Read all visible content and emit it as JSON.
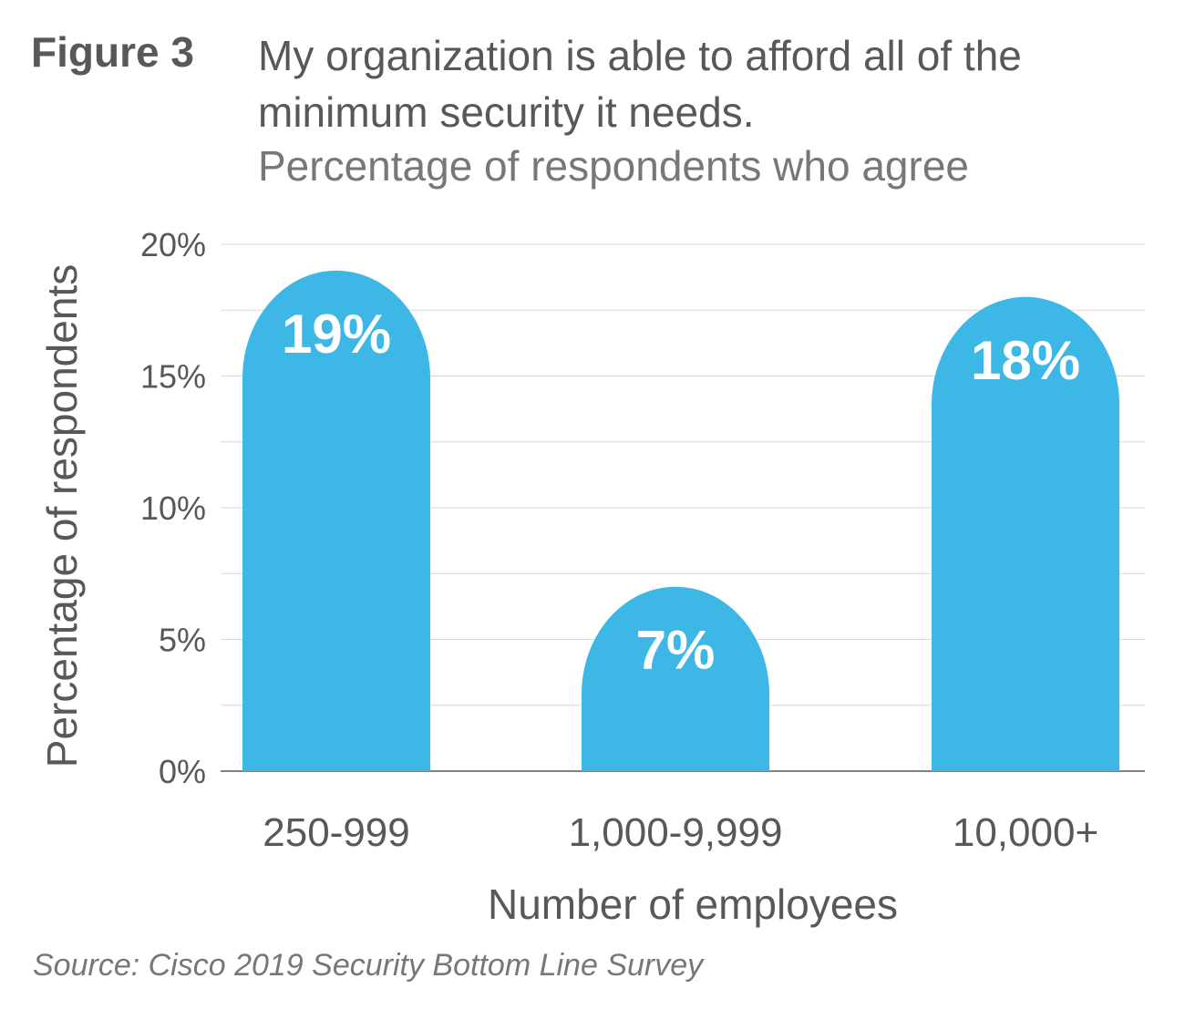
{
  "header": {
    "figure_label": "Figure 3",
    "title": "My organization is able to afford all of the minimum security it needs.",
    "subtitle": "Percentage of respondents who agree"
  },
  "footer": {
    "source": "Source: Cisco 2019 Security Bottom Line Survey"
  },
  "colors": {
    "bar": "#3db8e6",
    "grid": "#d9d9d9",
    "axis": "#58585b"
  },
  "chart_data": {
    "type": "bar",
    "categories": [
      "250-999",
      "1,000-9,999",
      "10,000+"
    ],
    "values": [
      19,
      7,
      18
    ],
    "data_labels": [
      "19%",
      "7%",
      "18%"
    ],
    "xlabel": "Number of employees",
    "ylabel": "Percentage of respondents",
    "ylim": [
      0,
      20
    ],
    "yticks": [
      0,
      5,
      10,
      15,
      20
    ],
    "ytick_labels": [
      "0%",
      "5%",
      "10%",
      "15%",
      "20%"
    ],
    "minor_gridlines": [
      2.5,
      7.5,
      12.5,
      17.5
    ],
    "grid": true,
    "bar_style": "rounded-top"
  }
}
